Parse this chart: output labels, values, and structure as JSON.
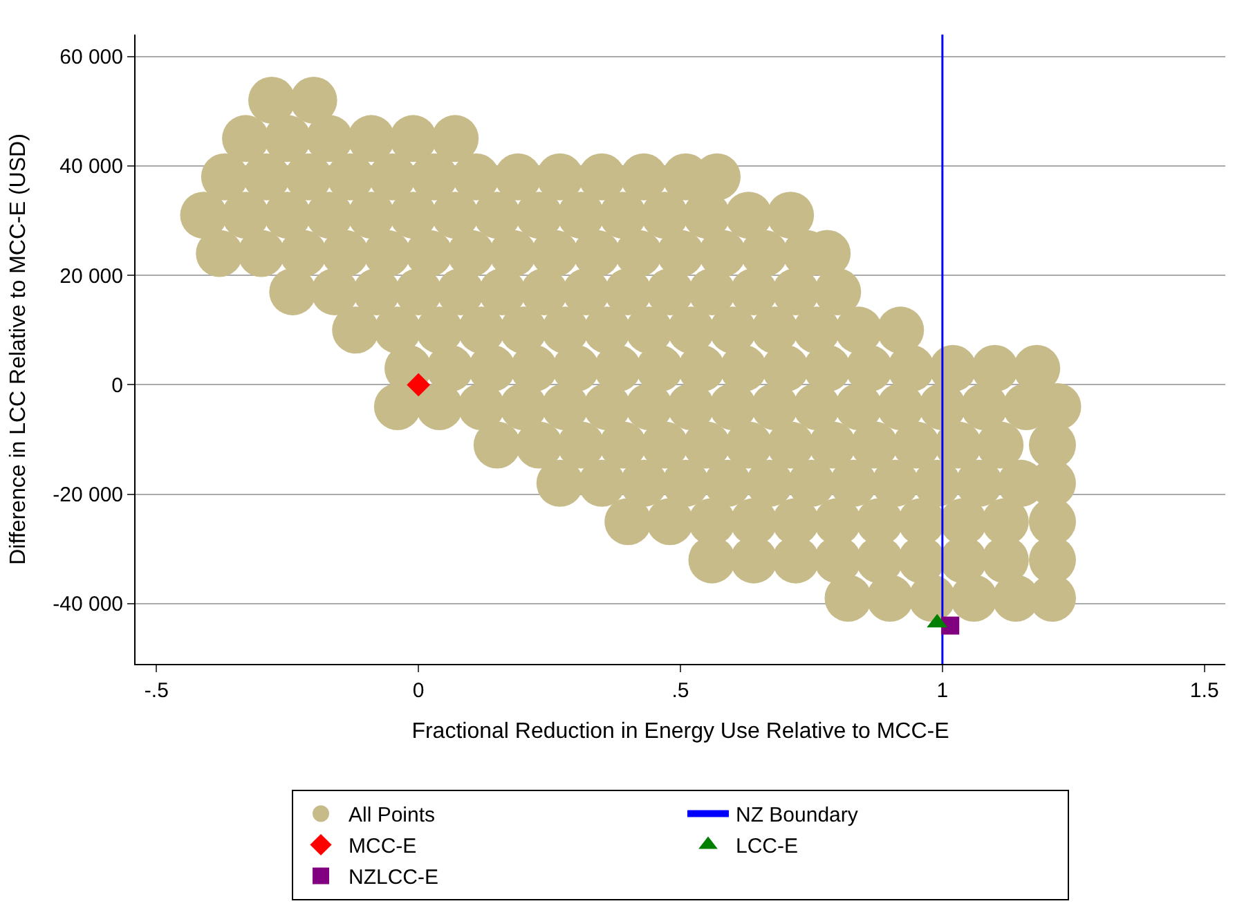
{
  "chart_data": {
    "type": "scatter",
    "xlabel": "Fractional Reduction in Energy Use Relative to MCC-E",
    "ylabel": "Difference in LCC Relative to MCC-E (USD)",
    "xlim": [
      -0.54,
      1.54
    ],
    "xticks": [
      {
        "value": -0.5,
        "label": "-.5"
      },
      0,
      {
        "value": 0.5,
        "label": ".5"
      },
      1,
      1.5
    ],
    "ylim": [
      -51000,
      64000
    ],
    "yticks": [
      {
        "value": -40000,
        "label": "-40 000"
      },
      {
        "value": -20000,
        "label": "-20 000"
      },
      0,
      {
        "value": 20000,
        "label": "20 000"
      },
      {
        "value": 40000,
        "label": "40 000"
      },
      {
        "value": 60000,
        "label": "60 000"
      }
    ],
    "grid": "y",
    "legend": "bottom",
    "series": [
      {
        "name": "All Points",
        "color": "#c8bb8a",
        "marker": "circle",
        "x": [
          -0.28,
          -0.2,
          -0.33,
          -0.25,
          -0.17,
          -0.09,
          -0.01,
          0.07,
          -0.37,
          -0.29,
          -0.21,
          -0.13,
          -0.05,
          0.03,
          0.11,
          0.19,
          0.27,
          0.35,
          0.43,
          0.51,
          0.57,
          -0.41,
          -0.33,
          -0.25,
          -0.17,
          -0.09,
          -0.01,
          0.07,
          0.15,
          0.23,
          0.31,
          0.39,
          0.47,
          0.55,
          0.63,
          0.71,
          -0.38,
          -0.3,
          -0.22,
          -0.14,
          -0.06,
          0.02,
          0.1,
          0.18,
          0.26,
          0.34,
          0.42,
          0.5,
          0.58,
          0.66,
          0.74,
          0.78,
          -0.24,
          -0.16,
          -0.08,
          0.0,
          0.08,
          0.16,
          0.24,
          0.32,
          0.4,
          0.48,
          0.56,
          0.64,
          0.72,
          0.8,
          -0.12,
          -0.04,
          0.04,
          0.12,
          0.2,
          0.28,
          0.36,
          0.44,
          0.52,
          0.6,
          0.68,
          0.76,
          0.84,
          0.92,
          -0.02,
          0.06,
          0.14,
          0.22,
          0.3,
          0.38,
          0.46,
          0.54,
          0.62,
          0.7,
          0.78,
          0.86,
          0.94,
          1.02,
          1.1,
          1.18,
          -0.04,
          0.04,
          0.12,
          0.2,
          0.28,
          0.36,
          0.44,
          0.52,
          0.6,
          0.68,
          0.76,
          0.84,
          0.92,
          1.0,
          1.08,
          1.16,
          1.22,
          0.15,
          0.23,
          0.31,
          0.39,
          0.47,
          0.55,
          0.63,
          0.71,
          0.79,
          0.87,
          0.95,
          1.03,
          1.11,
          1.21,
          0.27,
          0.35,
          0.43,
          0.51,
          0.59,
          0.67,
          0.75,
          0.83,
          0.91,
          0.99,
          1.07,
          1.15,
          1.21,
          0.4,
          0.48,
          0.56,
          0.64,
          0.72,
          0.8,
          0.88,
          0.96,
          1.04,
          1.12,
          1.21,
          0.56,
          0.64,
          0.72,
          0.8,
          0.88,
          0.96,
          1.04,
          1.12,
          1.21,
          0.82,
          0.9,
          0.98,
          1.06,
          1.14,
          1.21
        ],
        "values": [
          52000,
          52000,
          45000,
          45000,
          45000,
          45000,
          45000,
          45000,
          38000,
          38000,
          38000,
          38000,
          38000,
          38000,
          38000,
          38000,
          38000,
          38000,
          38000,
          38000,
          38000,
          31000,
          31000,
          31000,
          31000,
          31000,
          31000,
          31000,
          31000,
          31000,
          31000,
          31000,
          31000,
          31000,
          31000,
          31000,
          24000,
          24000,
          24000,
          24000,
          24000,
          24000,
          24000,
          24000,
          24000,
          24000,
          24000,
          24000,
          24000,
          24000,
          24000,
          24000,
          17000,
          17000,
          17000,
          17000,
          17000,
          17000,
          17000,
          17000,
          17000,
          17000,
          17000,
          17000,
          17000,
          17000,
          10000,
          10000,
          10000,
          10000,
          10000,
          10000,
          10000,
          10000,
          10000,
          10000,
          10000,
          10000,
          10000,
          10000,
          3000,
          3000,
          3000,
          3000,
          3000,
          3000,
          3000,
          3000,
          3000,
          3000,
          3000,
          3000,
          3000,
          3000,
          3000,
          3000,
          -4000,
          -4000,
          -4000,
          -4000,
          -4000,
          -4000,
          -4000,
          -4000,
          -4000,
          -4000,
          -4000,
          -4000,
          -4000,
          -4000,
          -4000,
          -4000,
          -4000,
          -11000,
          -11000,
          -11000,
          -11000,
          -11000,
          -11000,
          -11000,
          -11000,
          -11000,
          -11000,
          -11000,
          -11000,
          -11000,
          -11000,
          -18000,
          -18000,
          -18000,
          -18000,
          -18000,
          -18000,
          -18000,
          -18000,
          -18000,
          -18000,
          -18000,
          -18000,
          -18000,
          -25000,
          -25000,
          -25000,
          -25000,
          -25000,
          -25000,
          -25000,
          -25000,
          -25000,
          -25000,
          -25000,
          -32000,
          -32000,
          -32000,
          -32000,
          -32000,
          -32000,
          -32000,
          -32000,
          -32000,
          -39000,
          -39000,
          -39000,
          -39000,
          -39000,
          -39000
        ]
      },
      {
        "name": "MCC-E",
        "color": "#ff0000",
        "marker": "diamond",
        "x": [
          0
        ],
        "values": [
          0
        ]
      },
      {
        "name": "LCC-E",
        "color": "#008000",
        "marker": "triangle",
        "x": [
          0.99
        ],
        "values": [
          -43500
        ]
      },
      {
        "name": "NZLCC-E",
        "color": "#800080",
        "marker": "square",
        "x": [
          1.015
        ],
        "values": [
          -44000
        ]
      }
    ],
    "ref_lines": [
      {
        "axis": "x",
        "value": 1,
        "label": "NZ Boundary",
        "color": "#0000ff"
      }
    ]
  }
}
